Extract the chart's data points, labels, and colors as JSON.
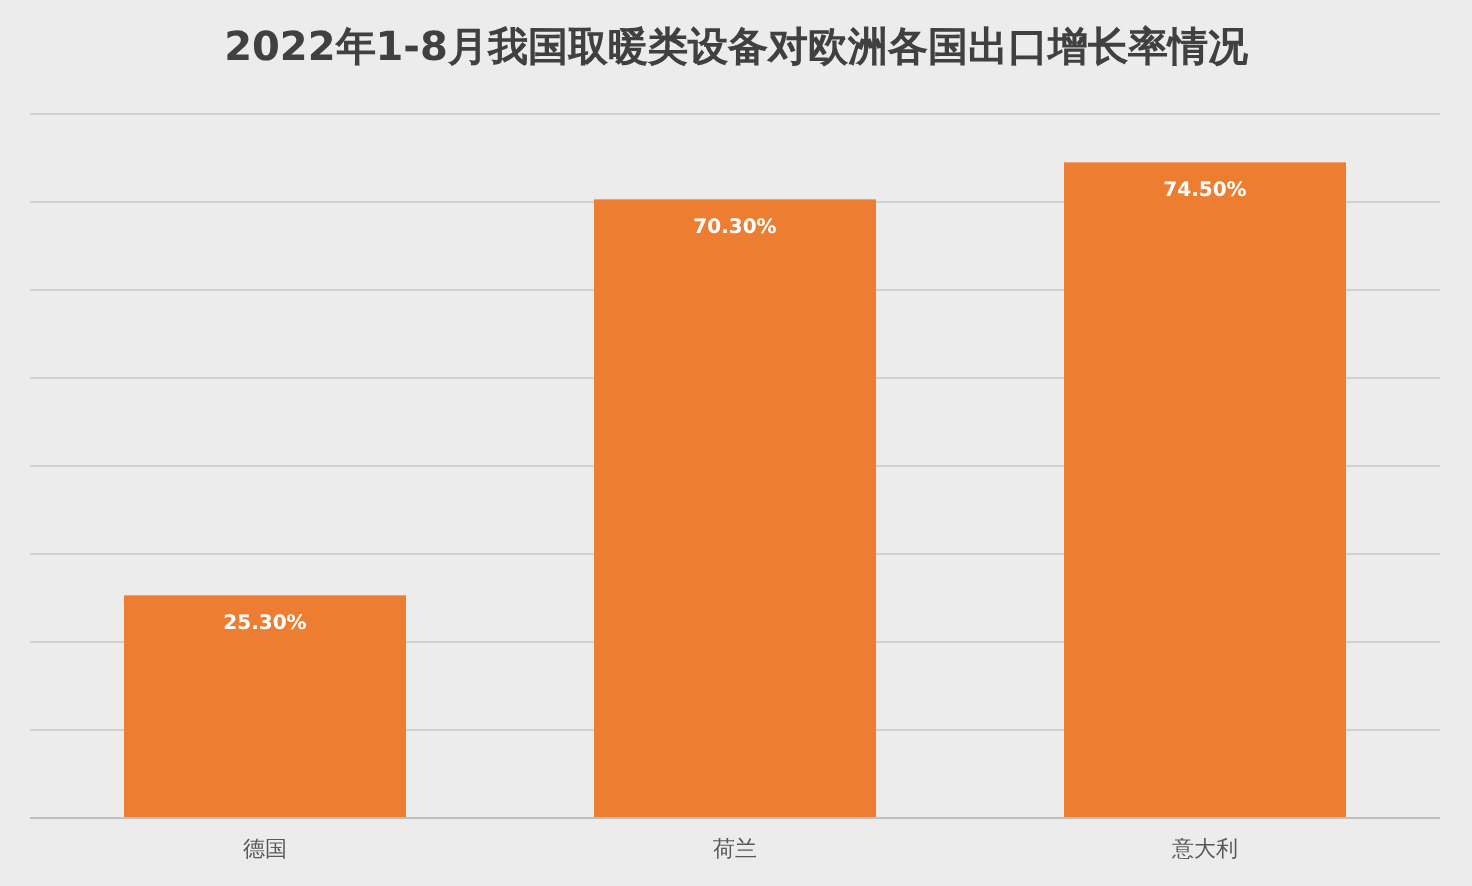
{
  "chart_data": {
    "type": "bar",
    "title": "2022年1-8月我国取暖类设备对欧洲各国出口增长率情况",
    "categories": [
      "德国",
      "荷兰",
      "意大利"
    ],
    "values": [
      25.3,
      70.3,
      74.5
    ],
    "value_labels": [
      "25.30%",
      "70.30%",
      "74.50%"
    ],
    "color": "#ed7d31",
    "ylim": [
      0,
      80
    ],
    "yticks": [
      {
        "value": 0,
        "label": null
      },
      {
        "value": 10,
        "label": null
      },
      {
        "value": 20,
        "label": null
      },
      {
        "value": 30,
        "label": null
      },
      {
        "value": 40,
        "label": null
      },
      {
        "value": 50,
        "label": null
      },
      {
        "value": 60,
        "label": null
      },
      {
        "value": 70,
        "label": null
      },
      {
        "value": 80,
        "label": null
      }
    ],
    "grid": "y"
  }
}
